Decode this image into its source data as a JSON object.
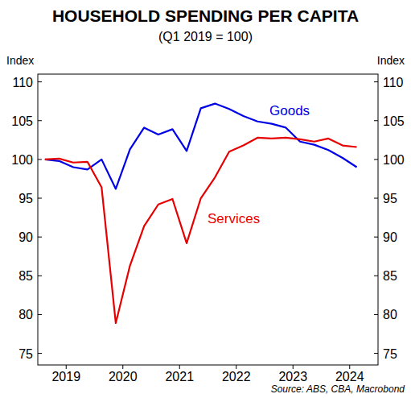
{
  "chart_data": {
    "type": "line",
    "title": "HOUSEHOLD SPENDING PER CAPITA",
    "subtitle": "(Q1 2019 = 100)",
    "y_label": "Index",
    "source": "Source: ABS, CBA, Macrobond",
    "x": [
      2019.125,
      2019.375,
      2019.625,
      2019.875,
      2020.125,
      2020.375,
      2020.625,
      2020.875,
      2021.125,
      2021.375,
      2021.625,
      2021.875,
      2022.125,
      2022.375,
      2022.625,
      2022.875,
      2023.125,
      2023.375,
      2023.625,
      2023.875,
      2024.125,
      2024.375,
      2024.625
    ],
    "xlim": [
      2019,
      2025
    ],
    "xticks": [
      {
        "value": 2019.5,
        "label": "2019"
      },
      {
        "value": 2020.5,
        "label": "2020"
      },
      {
        "value": 2021.5,
        "label": "2021"
      },
      {
        "value": 2022.5,
        "label": "2022"
      },
      {
        "value": 2023.5,
        "label": "2023"
      },
      {
        "value": 2024.5,
        "label": "2024"
      }
    ],
    "ylim": [
      73.5,
      111
    ],
    "yticks": [
      75,
      80,
      85,
      90,
      95,
      100,
      105,
      110
    ],
    "grid": false,
    "series": [
      {
        "name": "Goods",
        "color": "#0000e6",
        "values": [
          100,
          99.8,
          99,
          98.7,
          100,
          96.2,
          101.3,
          104.1,
          103.2,
          103.9,
          101.1,
          106.6,
          107.2,
          106.5,
          105.6,
          104.9,
          104.6,
          104.1,
          102.3,
          101.9,
          101.2,
          100.2,
          99
        ]
      },
      {
        "name": "Services",
        "color": "#e60000",
        "values": [
          100,
          100.1,
          99.6,
          99.7,
          96.4,
          78.9,
          86.3,
          91.4,
          94.2,
          94.9,
          89.2,
          95,
          97.7,
          101,
          101.8,
          102.8,
          102.7,
          102.8,
          102.6,
          102.3,
          102.7,
          101.8,
          101.6
        ]
      }
    ]
  }
}
